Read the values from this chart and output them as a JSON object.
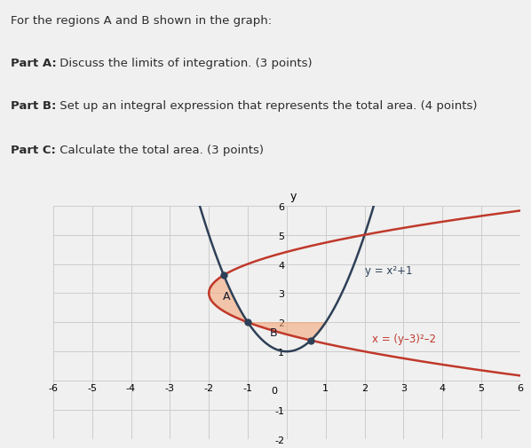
{
  "title_text": "For the regions A and B shown in the graph:",
  "part_a": "Part A: Discuss the limits of integration. (3 points)",
  "part_b": "Part B: Set up an integral expression that represents the total area. (4 points)",
  "part_c": "Part C: Calculate the total area. (3 points)",
  "label_y_eq": "y = x²+1",
  "label_x_eq": "x = (y–3)²–2",
  "label_A": "A",
  "label_B": "B",
  "xlim": [
    -6,
    6
  ],
  "ylim": [
    -2,
    6
  ],
  "blue_color": "#2e4057",
  "red_color": "#c0392b",
  "fill_color": "#f5a87a",
  "fill_alpha": 0.6,
  "background_color": "#f0f0f0",
  "text_color": "#1a1a2e",
  "grid_color": "#cccccc",
  "inter1_x": -1.6180339887,
  "inter1_y": 3.6180339887,
  "inter2_x": -1.0,
  "inter2_y": 2.0,
  "inter3_x": 0.6180339887,
  "inter3_y": 1.3819660113
}
